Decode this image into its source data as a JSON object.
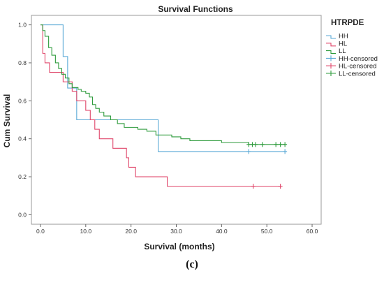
{
  "caption": "(c)",
  "chart_data": {
    "type": "line",
    "subtype": "kaplan-meier",
    "title": "Survival Functions",
    "xlabel": "Survival (months)",
    "ylabel": "Cum Survival",
    "xlim": [
      -2,
      62
    ],
    "ylim": [
      -0.05,
      1.05
    ],
    "xticks": [
      0,
      10,
      20,
      30,
      40,
      50,
      60
    ],
    "xtick_labels": [
      "0.0",
      "10.0",
      "20.0",
      "30.0",
      "40.0",
      "50.0",
      "60.0"
    ],
    "yticks": [
      0,
      0.2,
      0.4,
      0.6,
      0.8,
      1.0
    ],
    "ytick_labels": [
      "0.0",
      "0.2",
      "0.4",
      "0.6",
      "0.8",
      "1.0"
    ],
    "grid": false,
    "legend": {
      "title": "HTRPDE",
      "position": "right",
      "entries": [
        "HH",
        "HL",
        "LL",
        "HH-censored",
        "HL-censored",
        "LL-censored"
      ]
    },
    "series": [
      {
        "name": "HH",
        "color": "#5aa9d6",
        "steps": [
          [
            0,
            1.0
          ],
          [
            5,
            0.833
          ],
          [
            6,
            0.667
          ],
          [
            8,
            0.5
          ],
          [
            26,
            0.333
          ],
          [
            54,
            0.333
          ]
        ],
        "censored": [
          [
            46,
            0.333
          ],
          [
            54,
            0.333
          ]
        ]
      },
      {
        "name": "HL",
        "color": "#e0466a",
        "steps": [
          [
            0,
            1.0
          ],
          [
            0.5,
            0.85
          ],
          [
            1,
            0.8
          ],
          [
            2,
            0.75
          ],
          [
            5,
            0.7
          ],
          [
            7,
            0.65
          ],
          [
            8,
            0.6
          ],
          [
            10,
            0.55
          ],
          [
            11,
            0.5
          ],
          [
            12,
            0.45
          ],
          [
            13,
            0.4
          ],
          [
            16,
            0.35
          ],
          [
            19,
            0.3
          ],
          [
            19.5,
            0.25
          ],
          [
            21,
            0.2
          ],
          [
            28,
            0.15
          ],
          [
            53,
            0.15
          ]
        ],
        "censored": [
          [
            47,
            0.15
          ],
          [
            53,
            0.15
          ]
        ]
      },
      {
        "name": "LL",
        "color": "#2e9b3c",
        "steps": [
          [
            0,
            1.0
          ],
          [
            0.5,
            0.97
          ],
          [
            1,
            0.94
          ],
          [
            1.8,
            0.88
          ],
          [
            2.5,
            0.84
          ],
          [
            3.3,
            0.8
          ],
          [
            4,
            0.77
          ],
          [
            4.7,
            0.74
          ],
          [
            5.5,
            0.72
          ],
          [
            6.3,
            0.69
          ],
          [
            7,
            0.67
          ],
          [
            8.3,
            0.66
          ],
          [
            9,
            0.65
          ],
          [
            10,
            0.64
          ],
          [
            10.8,
            0.62
          ],
          [
            11.5,
            0.58
          ],
          [
            12.2,
            0.56
          ],
          [
            13,
            0.54
          ],
          [
            14,
            0.52
          ],
          [
            15.5,
            0.5
          ],
          [
            17,
            0.48
          ],
          [
            18.5,
            0.46
          ],
          [
            21.5,
            0.45
          ],
          [
            23.5,
            0.44
          ],
          [
            25.5,
            0.42
          ],
          [
            29,
            0.41
          ],
          [
            31,
            0.4
          ],
          [
            33,
            0.39
          ],
          [
            40,
            0.38
          ],
          [
            46,
            0.37
          ],
          [
            54,
            0.37
          ]
        ],
        "censored": [
          [
            46,
            0.37
          ],
          [
            46.8,
            0.37
          ],
          [
            47.5,
            0.37
          ],
          [
            49,
            0.37
          ],
          [
            52,
            0.37
          ],
          [
            53,
            0.37
          ],
          [
            54,
            0.37
          ]
        ]
      }
    ]
  }
}
